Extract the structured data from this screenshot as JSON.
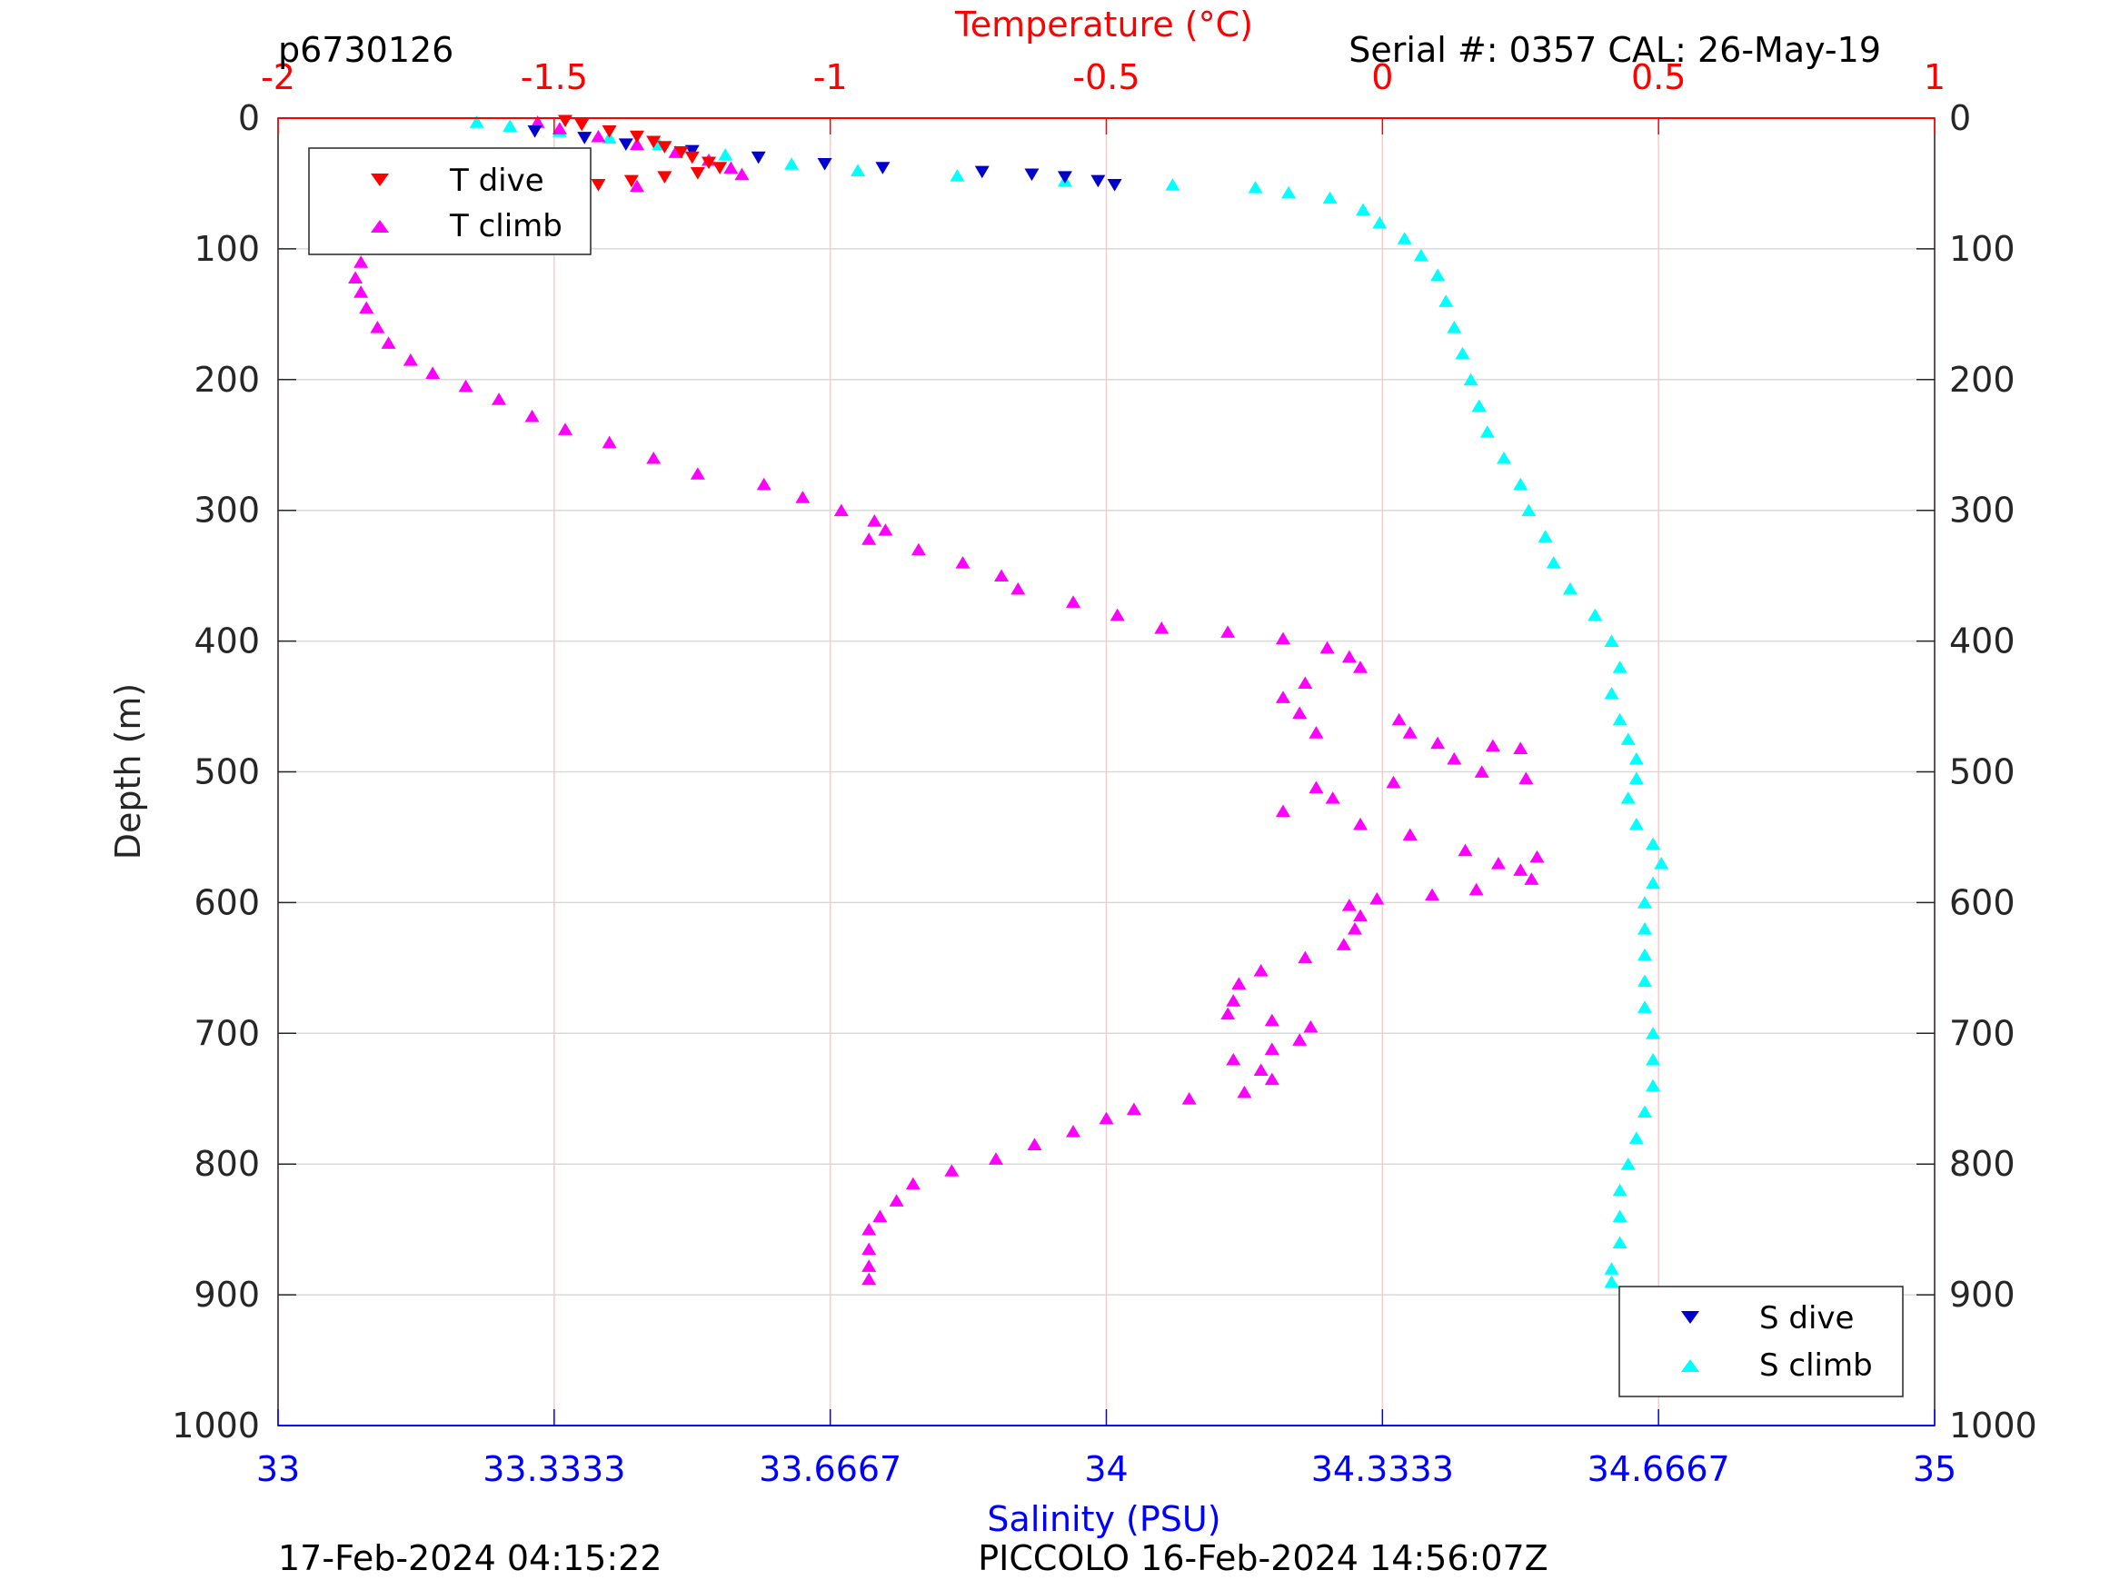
{
  "header": {
    "left": "p6730126",
    "right": "Serial #: 0357  CAL: 26-May-19"
  },
  "footer": {
    "left": "17-Feb-2024 04:15:22",
    "center": "PICCOLO 16-Feb-2024 14:56:07Z"
  },
  "colors": {
    "temperature_axis": "#ff0000",
    "salinity_axis": "#0000ff",
    "t_dive": "#ff0000",
    "t_climb": "#ff00ff",
    "s_dive": "#0000cd",
    "s_climb": "#00ffff",
    "grid_depth": "#d9d9d9",
    "grid_temp": "#ffc8c8"
  },
  "chart_data": {
    "type": "scatter",
    "ylabel": "Depth (m)",
    "xlabel_top": "Temperature (°C)",
    "xlabel_bottom": "Salinity (PSU)",
    "y_reversed": true,
    "ylim": [
      0,
      1000
    ],
    "xlim_top": [
      -2,
      1
    ],
    "xlim_bottom": [
      33,
      35
    ],
    "yticks": [
      "0",
      "100",
      "200",
      "300",
      "400",
      "500",
      "600",
      "700",
      "800",
      "900",
      "1000"
    ],
    "xticks_top": [
      "-2",
      "-1.5",
      "-1",
      "-0.5",
      "0",
      "0.5",
      "1"
    ],
    "xticks_bottom": [
      "33",
      "33.3333",
      "33.6667",
      "34",
      "34.3333",
      "34.6667",
      "35"
    ],
    "grid": "on",
    "legends": [
      {
        "position": "top-left",
        "entries": [
          "T dive",
          "T climb"
        ]
      },
      {
        "position": "bottom-right",
        "entries": [
          "S dive",
          "S climb"
        ]
      }
    ],
    "series": [
      {
        "name": "T dive",
        "axis": "temperature",
        "marker": "triangle-down",
        "points": [
          [
            -1.48,
            2
          ],
          [
            -1.45,
            5
          ],
          [
            -1.4,
            10
          ],
          [
            -1.35,
            14
          ],
          [
            -1.32,
            18
          ],
          [
            -1.3,
            22
          ],
          [
            -1.27,
            26
          ],
          [
            -1.25,
            30
          ],
          [
            -1.22,
            34
          ],
          [
            -1.2,
            38
          ],
          [
            -1.24,
            42
          ],
          [
            -1.3,
            45
          ],
          [
            -1.36,
            48
          ],
          [
            -1.42,
            51
          ]
        ]
      },
      {
        "name": "T climb",
        "axis": "temperature",
        "marker": "triangle-up",
        "points": [
          [
            -1.53,
            3
          ],
          [
            -1.49,
            8
          ],
          [
            -1.42,
            14
          ],
          [
            -1.35,
            20
          ],
          [
            -1.28,
            26
          ],
          [
            -1.22,
            32
          ],
          [
            -1.18,
            38
          ],
          [
            -1.16,
            43
          ],
          [
            -1.35,
            52
          ],
          [
            -1.48,
            56
          ],
          [
            -1.62,
            63
          ],
          [
            -1.7,
            70
          ],
          [
            -1.75,
            78
          ],
          [
            -1.8,
            87
          ],
          [
            -1.83,
            97
          ],
          [
            -1.85,
            110
          ],
          [
            -1.86,
            122
          ],
          [
            -1.85,
            133
          ],
          [
            -1.84,
            145
          ],
          [
            -1.82,
            160
          ],
          [
            -1.8,
            172
          ],
          [
            -1.76,
            185
          ],
          [
            -1.72,
            195
          ],
          [
            -1.66,
            205
          ],
          [
            -1.6,
            215
          ],
          [
            -1.54,
            228
          ],
          [
            -1.48,
            238
          ],
          [
            -1.4,
            248
          ],
          [
            -1.32,
            260
          ],
          [
            -1.24,
            272
          ],
          [
            -1.12,
            280
          ],
          [
            -1.05,
            290
          ],
          [
            -0.98,
            300
          ],
          [
            -0.92,
            308
          ],
          [
            -0.9,
            315
          ],
          [
            -0.93,
            322
          ],
          [
            -0.84,
            330
          ],
          [
            -0.76,
            340
          ],
          [
            -0.69,
            350
          ],
          [
            -0.66,
            360
          ],
          [
            -0.56,
            370
          ],
          [
            -0.48,
            380
          ],
          [
            -0.4,
            390
          ],
          [
            -0.28,
            393
          ],
          [
            -0.18,
            398
          ],
          [
            -0.1,
            405
          ],
          [
            -0.06,
            412
          ],
          [
            -0.04,
            420
          ],
          [
            -0.14,
            432
          ],
          [
            -0.18,
            443
          ],
          [
            -0.15,
            455
          ],
          [
            -0.12,
            470
          ],
          [
            0.03,
            460
          ],
          [
            0.05,
            470
          ],
          [
            0.1,
            478
          ],
          [
            0.2,
            480
          ],
          [
            0.25,
            482
          ],
          [
            0.13,
            490
          ],
          [
            0.18,
            500
          ],
          [
            0.26,
            505
          ],
          [
            0.02,
            508
          ],
          [
            -0.12,
            512
          ],
          [
            -0.09,
            520
          ],
          [
            -0.18,
            530
          ],
          [
            -0.04,
            540
          ],
          [
            0.05,
            548
          ],
          [
            0.15,
            560
          ],
          [
            0.28,
            565
          ],
          [
            0.21,
            570
          ],
          [
            0.25,
            575
          ],
          [
            0.27,
            582
          ],
          [
            0.17,
            590
          ],
          [
            0.09,
            594
          ],
          [
            -0.01,
            597
          ],
          [
            -0.06,
            602
          ],
          [
            -0.04,
            610
          ],
          [
            -0.05,
            620
          ],
          [
            -0.07,
            632
          ],
          [
            -0.14,
            642
          ],
          [
            -0.22,
            652
          ],
          [
            -0.26,
            662
          ],
          [
            -0.27,
            675
          ],
          [
            -0.28,
            685
          ],
          [
            -0.2,
            690
          ],
          [
            -0.13,
            695
          ],
          [
            -0.15,
            705
          ],
          [
            -0.2,
            712
          ],
          [
            -0.27,
            720
          ],
          [
            -0.22,
            728
          ],
          [
            -0.2,
            735
          ],
          [
            -0.25,
            745
          ],
          [
            -0.35,
            750
          ],
          [
            -0.45,
            758
          ],
          [
            -0.5,
            765
          ],
          [
            -0.56,
            775
          ],
          [
            -0.63,
            785
          ],
          [
            -0.7,
            796
          ],
          [
            -0.78,
            805
          ],
          [
            -0.85,
            815
          ],
          [
            -0.88,
            828
          ],
          [
            -0.91,
            840
          ],
          [
            -0.93,
            850
          ],
          [
            -0.93,
            865
          ],
          [
            -0.93,
            878
          ],
          [
            -0.93,
            888
          ]
        ]
      },
      {
        "name": "S dive",
        "axis": "salinity",
        "marker": "triangle-down",
        "points": [
          [
            33.31,
            10
          ],
          [
            33.37,
            15
          ],
          [
            33.42,
            20
          ],
          [
            33.5,
            25
          ],
          [
            33.58,
            30
          ],
          [
            33.66,
            35
          ],
          [
            33.73,
            38
          ],
          [
            33.85,
            41
          ],
          [
            33.91,
            43
          ],
          [
            33.95,
            45
          ],
          [
            33.99,
            48
          ],
          [
            34.01,
            51
          ]
        ]
      },
      {
        "name": "S climb",
        "axis": "salinity",
        "marker": "triangle-up",
        "points": [
          [
            33.24,
            3
          ],
          [
            33.28,
            6
          ],
          [
            33.34,
            10
          ],
          [
            33.4,
            15
          ],
          [
            33.46,
            20
          ],
          [
            33.54,
            28
          ],
          [
            33.62,
            35
          ],
          [
            33.7,
            40
          ],
          [
            33.82,
            44
          ],
          [
            33.95,
            48
          ],
          [
            34.08,
            51
          ],
          [
            34.18,
            53
          ],
          [
            34.22,
            57
          ],
          [
            34.27,
            61
          ],
          [
            34.31,
            70
          ],
          [
            34.33,
            80
          ],
          [
            34.36,
            92
          ],
          [
            34.38,
            105
          ],
          [
            34.4,
            120
          ],
          [
            34.41,
            140
          ],
          [
            34.42,
            160
          ],
          [
            34.43,
            180
          ],
          [
            34.44,
            200
          ],
          [
            34.45,
            220
          ],
          [
            34.46,
            240
          ],
          [
            34.48,
            260
          ],
          [
            34.5,
            280
          ],
          [
            34.51,
            300
          ],
          [
            34.53,
            320
          ],
          [
            34.54,
            340
          ],
          [
            34.56,
            360
          ],
          [
            34.59,
            380
          ],
          [
            34.61,
            400
          ],
          [
            34.62,
            420
          ],
          [
            34.61,
            440
          ],
          [
            34.62,
            460
          ],
          [
            34.63,
            475
          ],
          [
            34.64,
            490
          ],
          [
            34.64,
            505
          ],
          [
            34.63,
            520
          ],
          [
            34.64,
            540
          ],
          [
            34.66,
            555
          ],
          [
            34.67,
            570
          ],
          [
            34.66,
            585
          ],
          [
            34.65,
            600
          ],
          [
            34.65,
            620
          ],
          [
            34.65,
            640
          ],
          [
            34.65,
            660
          ],
          [
            34.65,
            680
          ],
          [
            34.66,
            700
          ],
          [
            34.66,
            720
          ],
          [
            34.66,
            740
          ],
          [
            34.65,
            760
          ],
          [
            34.64,
            780
          ],
          [
            34.63,
            800
          ],
          [
            34.62,
            820
          ],
          [
            34.62,
            840
          ],
          [
            34.62,
            860
          ],
          [
            34.61,
            880
          ],
          [
            34.61,
            890
          ]
        ]
      }
    ]
  }
}
